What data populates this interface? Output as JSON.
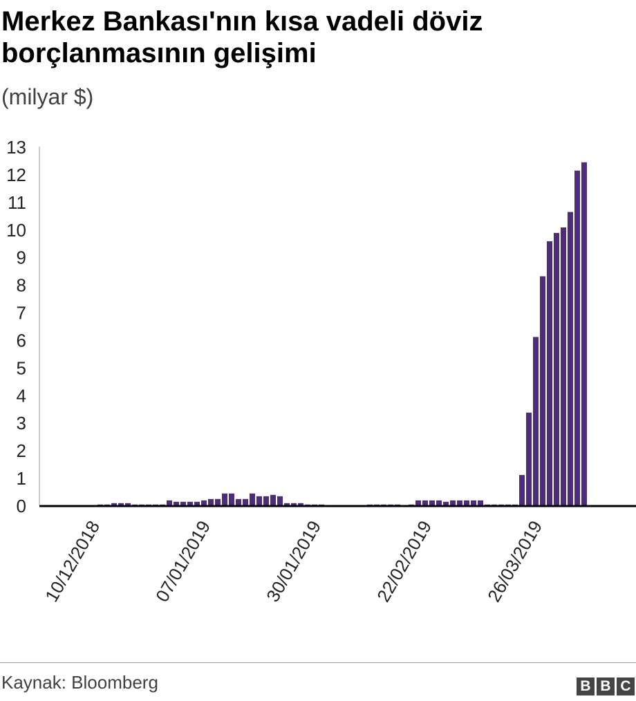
{
  "title": "Merkez Bankası'nın kısa vadeli döviz borçlanmasının gelişimi",
  "subtitle": "(milyar $)",
  "source": "Kaynak: Bloomberg",
  "logo": "BBC",
  "chart_data": {
    "type": "bar",
    "title": "Merkez Bankası'nın kısa vadeli döviz borçlanmasının gelişimi",
    "ylabel": "(milyar $)",
    "ylim": [
      0,
      13
    ],
    "yticks": [
      0,
      1,
      2,
      3,
      4,
      5,
      6,
      7,
      8,
      9,
      10,
      11,
      12,
      13
    ],
    "grid": false,
    "color": "#4d2c7a",
    "x_ticks": [
      {
        "index": 8,
        "label": "10/12/2018"
      },
      {
        "index": 24,
        "label": "07/01/2019"
      },
      {
        "index": 40,
        "label": "30/01/2019"
      },
      {
        "index": 56,
        "label": "22/02/2019"
      },
      {
        "index": 72,
        "label": "26/03/2019"
      }
    ],
    "values": [
      0,
      0,
      0,
      0,
      0,
      0,
      0,
      0,
      0.03,
      0.03,
      0.08,
      0.08,
      0.08,
      0.03,
      0.03,
      0.03,
      0.03,
      0.03,
      0.18,
      0.13,
      0.13,
      0.13,
      0.13,
      0.18,
      0.23,
      0.23,
      0.43,
      0.43,
      0.23,
      0.23,
      0.43,
      0.33,
      0.33,
      0.38,
      0.33,
      0.08,
      0.08,
      0.08,
      0.03,
      0.03,
      0.03,
      0,
      0,
      0,
      0,
      0,
      0,
      0.03,
      0.03,
      0.03,
      0.03,
      0.03,
      0,
      0.03,
      0.18,
      0.18,
      0.18,
      0.18,
      0.13,
      0.18,
      0.18,
      0.18,
      0.18,
      0.18,
      0.03,
      0.03,
      0.03,
      0.03,
      0.03,
      1.1,
      3.36,
      6.1,
      8.3,
      9.57,
      9.87,
      10.07,
      10.63,
      12.13,
      12.43
    ]
  }
}
